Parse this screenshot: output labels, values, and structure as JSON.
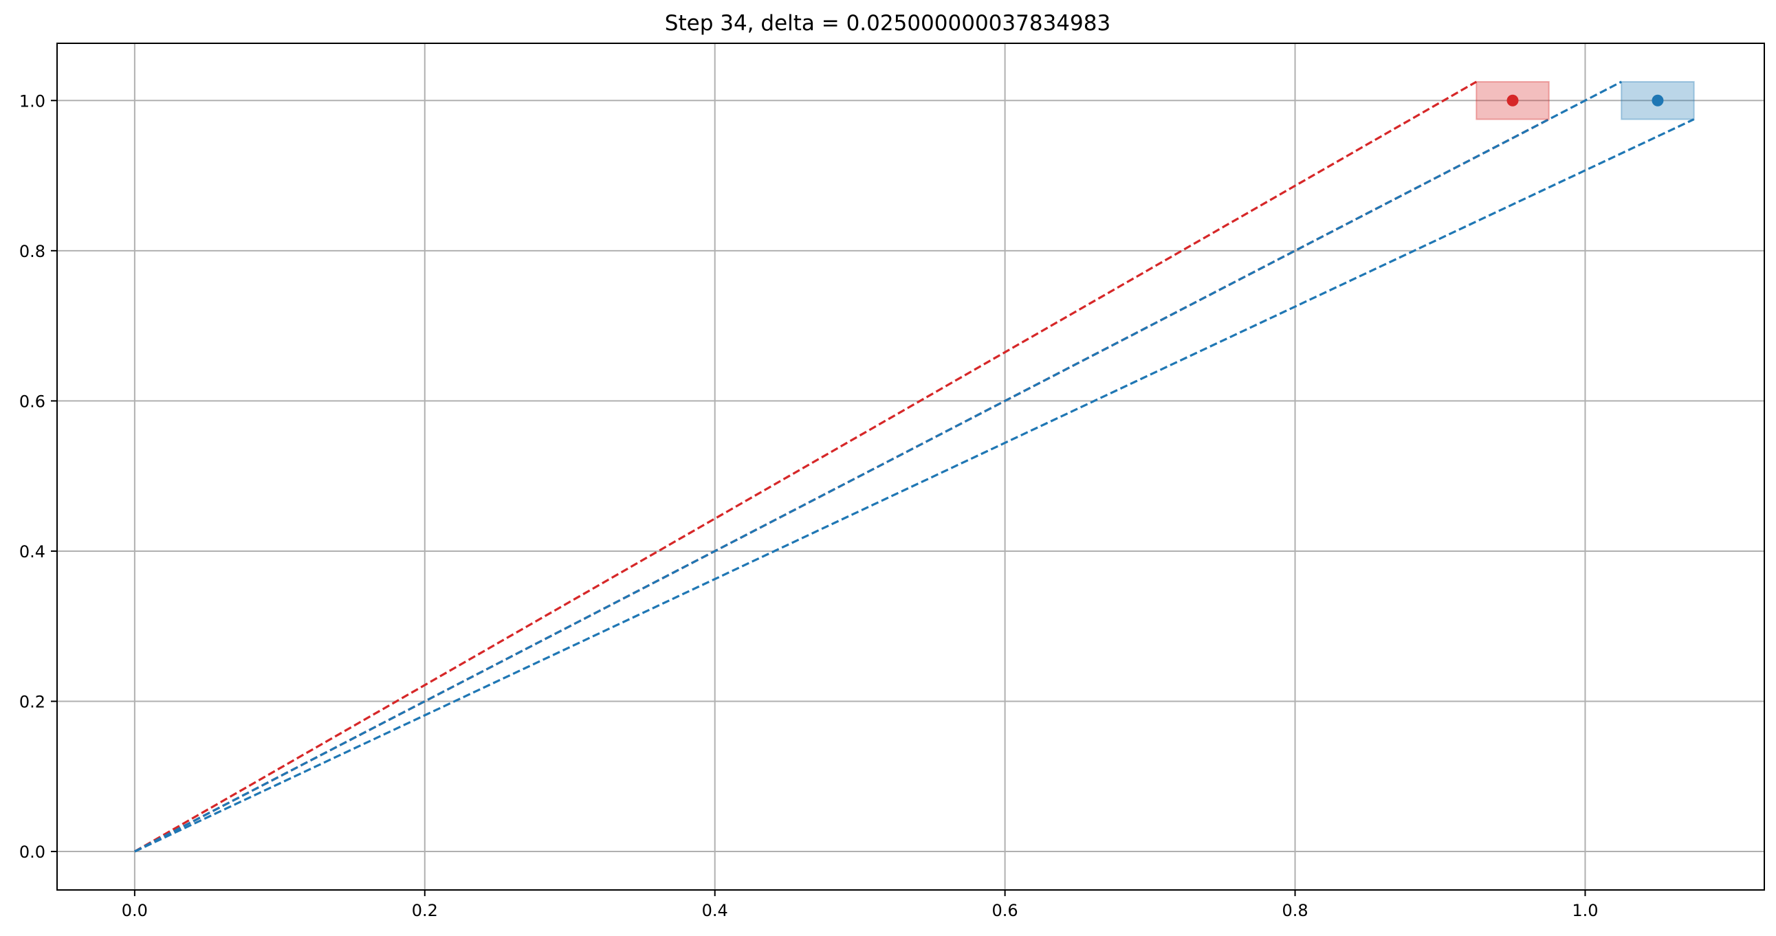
{
  "chart_data": {
    "type": "line",
    "title": "Step 34, delta = 0.025000000037834983",
    "xlabel": "",
    "ylabel": "",
    "xlim": [
      -0.0535,
      1.1235
    ],
    "ylim": [
      -0.0512,
      1.0762
    ],
    "x_ticks": [
      0.0,
      0.2,
      0.4,
      0.6,
      0.8,
      1.0
    ],
    "x_tick_labels": [
      "0.0",
      "0.2",
      "0.4",
      "0.6",
      "0.8",
      "1.0"
    ],
    "y_ticks": [
      0.0,
      0.2,
      0.4,
      0.6,
      0.8,
      1.0
    ],
    "y_tick_labels": [
      "0.0",
      "0.2",
      "0.4",
      "0.6",
      "0.8",
      "1.0"
    ],
    "grid": true,
    "colors": {
      "red": "#d62728",
      "blue": "#1f77b4",
      "grid": "#b0b0b0"
    },
    "dashed_lines": [
      {
        "color": "red",
        "x": [
          0.0,
          0.925
        ],
        "y": [
          0.0,
          1.025
        ]
      },
      {
        "color": "red",
        "x": [
          0.0,
          0.975
        ],
        "y": [
          0.0,
          0.975
        ]
      },
      {
        "color": "blue",
        "x": [
          0.0,
          1.025
        ],
        "y": [
          0.0,
          1.025
        ]
      },
      {
        "color": "blue",
        "x": [
          0.0,
          1.075
        ],
        "y": [
          0.0,
          0.975
        ]
      }
    ],
    "boxes": [
      {
        "color": "red",
        "x": [
          0.925,
          0.975
        ],
        "y": [
          0.975,
          1.025
        ]
      },
      {
        "color": "blue",
        "x": [
          1.025,
          1.075
        ],
        "y": [
          0.975,
          1.025
        ]
      }
    ],
    "points": [
      {
        "color": "red",
        "x": 0.95,
        "y": 1.0
      },
      {
        "color": "blue",
        "x": 1.05,
        "y": 1.0
      }
    ]
  }
}
